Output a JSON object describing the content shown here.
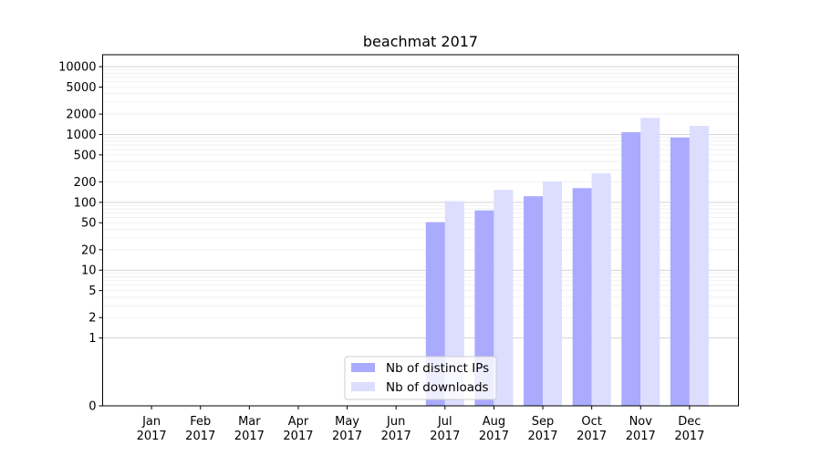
{
  "chart_data": {
    "type": "bar",
    "title": "beachmat 2017",
    "xlabel": "",
    "ylabel": "",
    "yscale": "symlog",
    "ylim": [
      0,
      15000
    ],
    "y_ticks": [
      0,
      1,
      2,
      5,
      10,
      20,
      50,
      100,
      200,
      500,
      1000,
      2000,
      5000,
      10000
    ],
    "grid": "horizontal",
    "legend_position": "lower-center",
    "categories": [
      [
        "Jan",
        "2017"
      ],
      [
        "Feb",
        "2017"
      ],
      [
        "Mar",
        "2017"
      ],
      [
        "Apr",
        "2017"
      ],
      [
        "May",
        "2017"
      ],
      [
        "Jun",
        "2017"
      ],
      [
        "Jul",
        "2017"
      ],
      [
        "Aug",
        "2017"
      ],
      [
        "Sep",
        "2017"
      ],
      [
        "Oct",
        "2017"
      ],
      [
        "Nov",
        "2017"
      ],
      [
        "Dec",
        "2017"
      ]
    ],
    "series": [
      {
        "name": "Nb of distinct IPs",
        "color": "#aaaaff",
        "values": [
          0,
          0,
          0,
          0,
          0,
          0,
          51,
          76,
          123,
          162,
          1080,
          905
        ]
      },
      {
        "name": "Nb of downloads",
        "color": "#ddddff",
        "values": [
          0,
          0,
          0,
          0,
          0,
          0,
          104,
          152,
          203,
          267,
          1759,
          1343
        ]
      }
    ]
  }
}
